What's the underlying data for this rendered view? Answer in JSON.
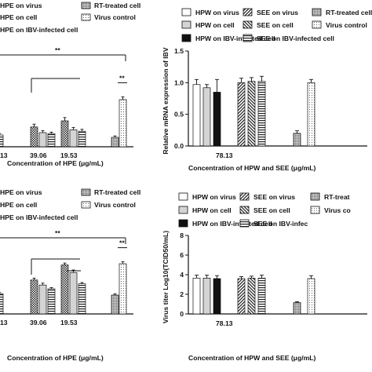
{
  "colors": {
    "ink": "#111111",
    "background": "#ffffff",
    "hpe_light_fill": "#d4d4d4"
  },
  "chart_data": [
    {
      "type": "bar",
      "panel": "top-left",
      "legend": [
        "HPE on virus",
        "RT-treated cell",
        "HPE on cell",
        "Virus control",
        "HPE on IBV-infected cell"
      ],
      "categories": [
        "13",
        "39.06",
        "19.53",
        "",
        ""
      ],
      "series": [
        {
          "name": "HPE on virus",
          "pattern": "checker",
          "values": [
            null,
            0.42,
            0.55,
            null,
            null
          ],
          "errors": [
            null,
            0.06,
            0.07,
            null,
            null
          ]
        },
        {
          "name": "HPE on cell",
          "pattern": "light-gray",
          "values": [
            null,
            0.3,
            0.36,
            null,
            null
          ],
          "errors": [
            null,
            0.04,
            0.05,
            null,
            null
          ]
        },
        {
          "name": "HPE on IBV-infected cell",
          "pattern": "horizontal-lines",
          "values": [
            0.25,
            0.28,
            0.33,
            null,
            null
          ],
          "errors": [
            0.03,
            0.03,
            0.04,
            null,
            null
          ]
        },
        {
          "name": "RT-treated cell",
          "pattern": "dense-dots",
          "values": [
            null,
            null,
            null,
            null,
            0.2
          ],
          "errors": [
            null,
            null,
            null,
            null,
            0.03
          ]
        },
        {
          "name": "Virus control",
          "pattern": "sparse-dots",
          "values": [
            null,
            null,
            null,
            null,
            1.0
          ],
          "errors": [
            null,
            null,
            null,
            null,
            0.06
          ]
        }
      ],
      "significance": [
        "**",
        "**"
      ],
      "xlabel": "Concentration of HPE  (μg/mL)"
    },
    {
      "type": "bar",
      "panel": "top-right",
      "legend": [
        "HPW on virus",
        "SEE on virus",
        "RT-treated cell",
        "HPW on cell",
        "SEE on cell",
        "Virus control",
        "HPW on IBV-infected cell",
        "SEE on IBV-infected cell"
      ],
      "categories": [
        "78.13",
        ""
      ],
      "series": [
        {
          "name": "HPW on virus",
          "pattern": "white",
          "values": [
            0.97,
            null
          ],
          "errors": [
            0.08,
            null
          ]
        },
        {
          "name": "HPW on cell",
          "pattern": "light-gray",
          "values": [
            0.92,
            null
          ],
          "errors": [
            0.05,
            null
          ]
        },
        {
          "name": "HPW on IBV-infected cell",
          "pattern": "black",
          "values": [
            0.85,
            null
          ],
          "errors": [
            0.2,
            null
          ]
        },
        {
          "name": "SEE on virus",
          "pattern": "diagonal-lines",
          "values": [
            1.0,
            null
          ],
          "errors": [
            0.07,
            null
          ]
        },
        {
          "name": "SEE on cell",
          "pattern": "diagonal-lines-reverse",
          "values": [
            1.02,
            null
          ],
          "errors": [
            0.06,
            null
          ]
        },
        {
          "name": "SEE on IBV-infected cell",
          "pattern": "horizontal-lines",
          "values": [
            1.02,
            null
          ],
          "errors": [
            0.08,
            null
          ]
        },
        {
          "name": "RT-treated cell",
          "pattern": "dense-dots",
          "values": [
            null,
            0.2
          ],
          "errors": [
            null,
            0.04
          ]
        },
        {
          "name": "Virus control",
          "pattern": "sparse-dots",
          "values": [
            null,
            1.0
          ],
          "errors": [
            null,
            0.05
          ]
        }
      ],
      "ylabel": "Relative mRNA expression of IBV",
      "ylim": [
        0.0,
        1.5
      ],
      "yticks": [
        "0.0",
        "0.5",
        "1.0",
        "1.5"
      ],
      "xlabel": "Concentration of HPW and SEE  (μg/mL)"
    },
    {
      "type": "bar",
      "panel": "bottom-left",
      "legend": [
        "HPE on virus",
        "RT-treated cell",
        "HPE on cell",
        "Virus control",
        "HPE on IBV-infected cell"
      ],
      "categories": [
        "13",
        "39.06",
        "19.53",
        "",
        ""
      ],
      "series": [
        {
          "name": "HPE on virus",
          "pattern": "checker",
          "values": [
            null,
            2.7,
            3.9,
            null,
            null
          ],
          "errors": [
            null,
            0.15,
            0.15,
            null,
            null
          ]
        },
        {
          "name": "HPE on cell",
          "pattern": "light-gray",
          "values": [
            null,
            2.3,
            3.3,
            null,
            null
          ],
          "errors": [
            null,
            0.15,
            0.2,
            null,
            null
          ]
        },
        {
          "name": "HPE on IBV-infected cell",
          "pattern": "horizontal-lines",
          "values": [
            1.6,
            2.0,
            2.4,
            null,
            null
          ],
          "errors": [
            0.1,
            0.1,
            0.1,
            null,
            null
          ]
        },
        {
          "name": "RT-treated cell",
          "pattern": "dense-dots",
          "values": [
            null,
            null,
            null,
            null,
            1.5
          ],
          "errors": [
            null,
            null,
            null,
            null,
            0.1
          ]
        },
        {
          "name": "Virus control",
          "pattern": "sparse-dots",
          "values": [
            null,
            null,
            null,
            null,
            4.0
          ],
          "errors": [
            null,
            null,
            null,
            null,
            0.15
          ]
        }
      ],
      "significance": [
        "**",
        "**"
      ],
      "xlabel": "Concentration of HPE  (μg/mL)"
    },
    {
      "type": "bar",
      "panel": "bottom-right",
      "legend": [
        "HPW on virus",
        "SEE on virus",
        "RT-treat",
        "HPW on cell",
        "SEE on cell",
        "Virus co",
        "HPW on IBV-infected cell",
        "SEE on IBV-infec"
      ],
      "categories": [
        "78.13",
        ""
      ],
      "series": [
        {
          "name": "HPW on virus",
          "pattern": "white",
          "values": [
            3.65,
            null
          ],
          "errors": [
            0.3,
            null
          ]
        },
        {
          "name": "HPW on cell",
          "pattern": "light-gray",
          "values": [
            3.65,
            null
          ],
          "errors": [
            0.3,
            null
          ]
        },
        {
          "name": "HPW on IBV-infected cell",
          "pattern": "black",
          "values": [
            3.6,
            null
          ],
          "errors": [
            0.3,
            null
          ]
        },
        {
          "name": "SEE on virus",
          "pattern": "diagonal-lines",
          "values": [
            3.6,
            null
          ],
          "errors": [
            0.2,
            null
          ]
        },
        {
          "name": "SEE on cell",
          "pattern": "diagonal-lines-reverse",
          "values": [
            3.65,
            null
          ],
          "errors": [
            0.2,
            null
          ]
        },
        {
          "name": "SEE on IBV-infected cell",
          "pattern": "horizontal-lines",
          "values": [
            3.65,
            null
          ],
          "errors": [
            0.3,
            null
          ]
        },
        {
          "name": "RT-treated cell",
          "pattern": "dense-dots",
          "values": [
            null,
            1.15
          ],
          "errors": [
            null,
            0.1
          ]
        },
        {
          "name": "Virus control",
          "pattern": "sparse-dots",
          "values": [
            null,
            3.6
          ],
          "errors": [
            null,
            0.3
          ]
        }
      ],
      "ylabel": "Virus titer Log10(TCID50/mL)",
      "ylim": [
        0,
        8
      ],
      "yticks": [
        "0",
        "2",
        "4",
        "6",
        "8"
      ],
      "xlabel": "Concentration of HPW and SEE  (μg/mL)"
    }
  ]
}
